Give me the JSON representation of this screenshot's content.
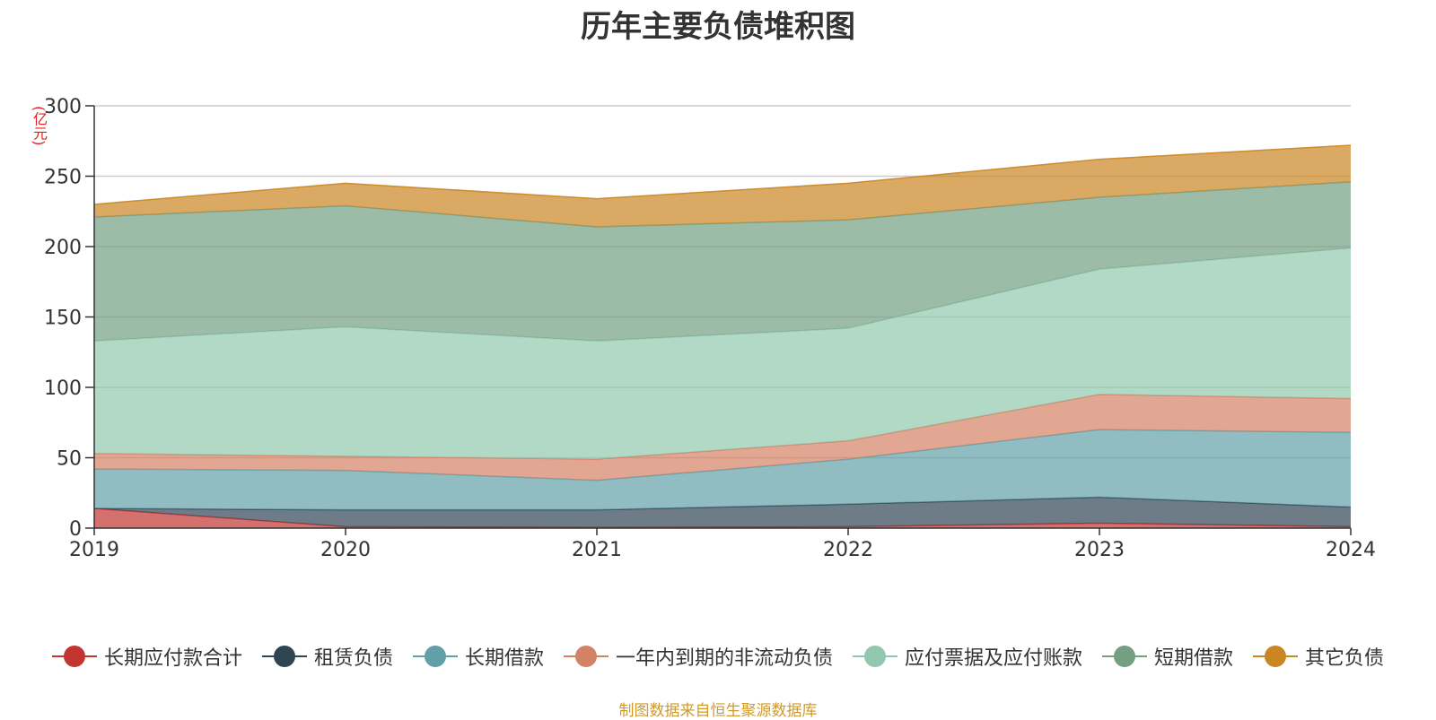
{
  "chart_data": {
    "type": "area",
    "title": "历年主要负债堆积图",
    "ylabel": "(亿元)",
    "x": [
      "2019",
      "2020",
      "2021",
      "2022",
      "2023",
      "2024"
    ],
    "ylim": [
      0,
      300
    ],
    "yticks": [
      "0",
      "50",
      "100",
      "150",
      "200",
      "250",
      "300"
    ],
    "grid": true,
    "stacked": true,
    "legend_position": "bottom",
    "series": [
      {
        "name": "长期应付款合计",
        "color": "#c23531",
        "values": [
          14,
          1,
          0.5,
          1,
          3.5,
          1
        ]
      },
      {
        "name": "租赁负债",
        "color": "#2f4554",
        "values": [
          0,
          12,
          12.5,
          16,
          18.5,
          14
        ]
      },
      {
        "name": "长期借款",
        "color": "#61a0a8",
        "values": [
          28,
          28,
          21,
          32,
          48,
          53
        ]
      },
      {
        "name": "一年内到期的非流动负债",
        "color": "#d48265",
        "values": [
          11,
          10,
          15,
          13,
          25,
          24
        ]
      },
      {
        "name": "应付票据及应付账款",
        "color": "#91c7ae",
        "values": [
          80,
          92,
          84,
          80,
          89,
          107
        ]
      },
      {
        "name": "短期借款",
        "color": "#749f83",
        "values": [
          88,
          86,
          81,
          77,
          51,
          47
        ]
      },
      {
        "name": "其它负债",
        "color": "#ca8622",
        "values": [
          9,
          16,
          20,
          26,
          27,
          26
        ]
      }
    ]
  },
  "footer": {
    "source": "制图数据来自恒生聚源数据库"
  }
}
